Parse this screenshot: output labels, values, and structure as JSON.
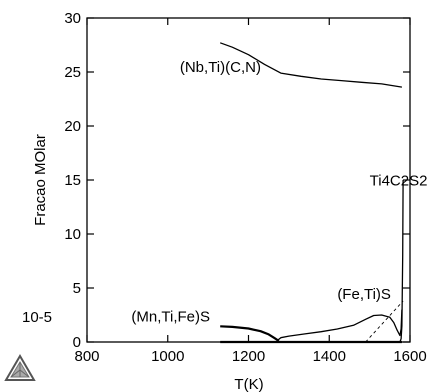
{
  "chart_data": {
    "type": "line",
    "xlabel": "T(K)",
    "ylabel": "Fracao MOlar",
    "y_multiplier_label": "10-5",
    "xlim": [
      800,
      1600
    ],
    "ylim": [
      0,
      30
    ],
    "x_ticks": [
      800,
      1000,
      1200,
      1400,
      1600
    ],
    "y_ticks": [
      0,
      5,
      10,
      15,
      20,
      25,
      30
    ],
    "grid": false,
    "series": [
      {
        "name": "(Nb,Ti)(C,N)",
        "x": [
          1130,
          1160,
          1200,
          1240,
          1280,
          1330,
          1380,
          1430,
          1480,
          1530,
          1580
        ],
        "y": [
          27.7,
          27.3,
          26.6,
          25.7,
          24.9,
          24.6,
          24.35,
          24.2,
          24.05,
          23.9,
          23.6
        ]
      },
      {
        "name": "(Mn,Ti,Fe)S",
        "x": [
          1130,
          1160,
          1200,
          1230,
          1250,
          1265,
          1275
        ],
        "y": [
          1.45,
          1.4,
          1.25,
          1.0,
          0.7,
          0.35,
          0.1
        ]
      },
      {
        "name": "(Fe,Ti)S",
        "x": [
          1270,
          1280,
          1300,
          1340,
          1380,
          1420,
          1460,
          1490,
          1510,
          1530,
          1550,
          1560,
          1568,
          1575,
          1578,
          1580
        ],
        "y": [
          0.1,
          0.4,
          0.55,
          0.75,
          0.95,
          1.2,
          1.55,
          2.1,
          2.45,
          2.5,
          2.3,
          1.8,
          1.1,
          0.6,
          1.2,
          3.0
        ]
      },
      {
        "name": "Ti4C2S2",
        "x": [
          1575,
          1578,
          1580,
          1582,
          1583
        ],
        "y": [
          0.0,
          0.3,
          1.5,
          8.0,
          15.0
        ]
      },
      {
        "name": "dashed",
        "style": "dashed",
        "x": [
          1490,
          1583
        ],
        "y": [
          0.0,
          3.8
        ]
      },
      {
        "name": "baseline",
        "x": [
          1130,
          1580
        ],
        "y": [
          0.0,
          0.0
        ]
      }
    ],
    "annotations": [
      {
        "text": "(Nb,Ti)(C,N)",
        "x": 1030,
        "y": 25.0
      },
      {
        "text": "Ti4C2S2",
        "x": 1500,
        "y": 14.5
      },
      {
        "text": "(Fe,Ti)S",
        "x": 1420,
        "y": 4.0
      },
      {
        "text": "(Mn,Ti,Fe)S",
        "x": 910,
        "y": 1.9
      }
    ]
  }
}
